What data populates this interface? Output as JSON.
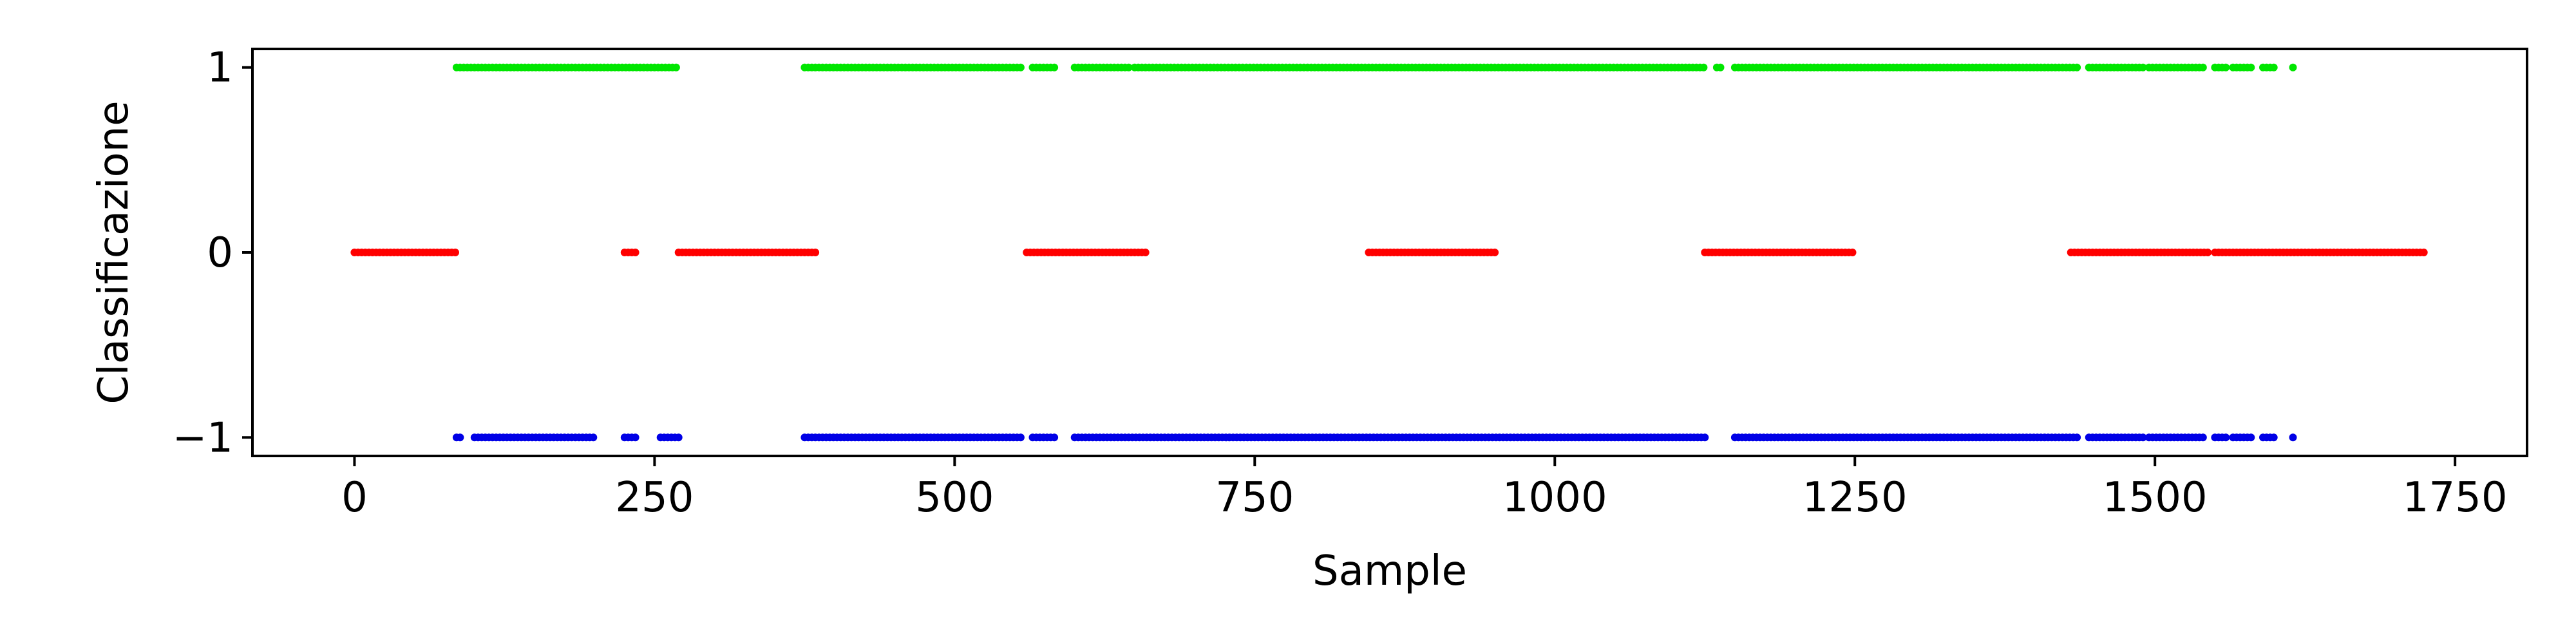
{
  "chart_data": {
    "type": "scatter",
    "title": "",
    "xlabel": "Sample",
    "ylabel": "Classificazione",
    "xlim": [
      -85,
      1810
    ],
    "ylim": [
      -1.1,
      1.1
    ],
    "x_ticks": [
      0,
      250,
      500,
      750,
      1000,
      1250,
      1500,
      1750
    ],
    "x_tick_labels": [
      "0",
      "250",
      "500",
      "750",
      "1000",
      "1250",
      "1500",
      "1750"
    ],
    "y_ticks": [
      -1,
      0,
      1
    ],
    "y_tick_labels": [
      "−1",
      "0",
      "1"
    ],
    "grid": false,
    "legend": false,
    "series": [
      {
        "color": "#00e600",
        "y": 1,
        "x_ranges": [
          [
            85,
            270
          ],
          [
            375,
            555
          ],
          [
            565,
            585
          ],
          [
            600,
            645
          ],
          [
            650,
            1125
          ],
          [
            1135,
            1140
          ],
          [
            1150,
            1435
          ],
          [
            1445,
            1490
          ],
          [
            1495,
            1540
          ],
          [
            1550,
            1560
          ],
          [
            1565,
            1580
          ],
          [
            1590,
            1600
          ],
          [
            1615,
            1616
          ]
        ]
      },
      {
        "color": "#ff0000",
        "y": 0,
        "x_ranges": [
          [
            0,
            85
          ],
          [
            225,
            235
          ],
          [
            270,
            385
          ],
          [
            560,
            660
          ],
          [
            845,
            950
          ],
          [
            1125,
            1250
          ],
          [
            1430,
            1545
          ],
          [
            1550,
            1725
          ]
        ]
      },
      {
        "color": "#0000e6",
        "y": -1,
        "x_ranges": [
          [
            85,
            88
          ],
          [
            100,
            200
          ],
          [
            225,
            235
          ],
          [
            255,
            270
          ],
          [
            375,
            555
          ],
          [
            565,
            585
          ],
          [
            600,
            1125
          ],
          [
            1150,
            1435
          ],
          [
            1445,
            1490
          ],
          [
            1495,
            1540
          ],
          [
            1550,
            1560
          ],
          [
            1565,
            1580
          ],
          [
            1590,
            1600
          ],
          [
            1615,
            1616
          ]
        ]
      }
    ]
  }
}
